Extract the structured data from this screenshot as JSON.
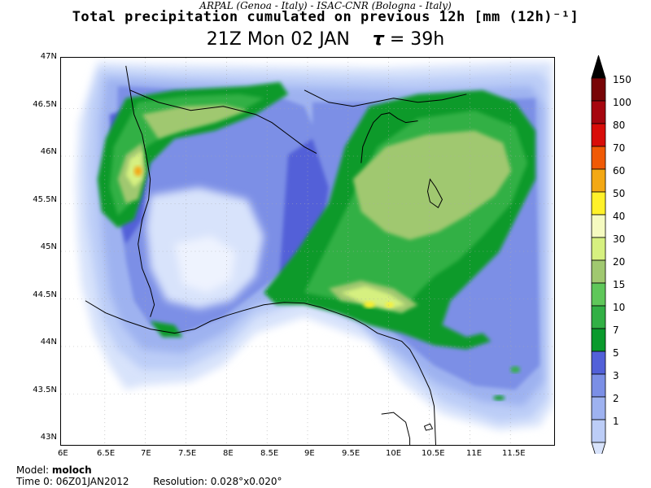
{
  "header": {
    "organizations": "ARPAL (Genoa - Italy)   -   ISAC-CNR (Bologna - Italy)",
    "title": "Total precipitation cumulated on previous 12h [mm (12h)⁻¹]",
    "valid_time": "21Z Mon 02 JAN",
    "tau_symbol": "τ",
    "tau_value": "= 39h"
  },
  "map": {
    "lat_ticks": [
      "47N",
      "46.5N",
      "46N",
      "45.5N",
      "45N",
      "44.5N",
      "44N",
      "43.5N",
      "43N"
    ],
    "lon_ticks": [
      "6E",
      "6.5E",
      "7E",
      "7.5E",
      "8E",
      "8.5E",
      "9E",
      "9.5E",
      "10E",
      "10.5E",
      "11E",
      "11.5E"
    ],
    "lat_range": [
      43,
      47
    ],
    "lon_range": [
      6,
      12
    ],
    "grid": true
  },
  "colorbar": {
    "labels": [
      "1",
      "2",
      "3",
      "5",
      "7",
      "10",
      "15",
      "20",
      "30",
      "40",
      "50",
      "60",
      "70",
      "80",
      "100",
      "150"
    ],
    "colors": [
      "#d8e3fb",
      "#bccdf7",
      "#9eb2f0",
      "#7b8fe6",
      "#5260d8",
      "#0a9a2c",
      "#32b045",
      "#5fc75a",
      "#a0c870",
      "#d6f080",
      "#f5fac0",
      "#fff12a",
      "#f3a814",
      "#f05a05",
      "#d80d09",
      "#a6060f",
      "#780406",
      "#000000"
    ]
  },
  "footer": {
    "model_label": "Model:",
    "model_value": "moloch",
    "time0_label": "Time 0:",
    "time0_value": "06Z01JAN2012",
    "resolution_label": "Resolution:",
    "resolution_value": "0.028°x0.020°"
  }
}
